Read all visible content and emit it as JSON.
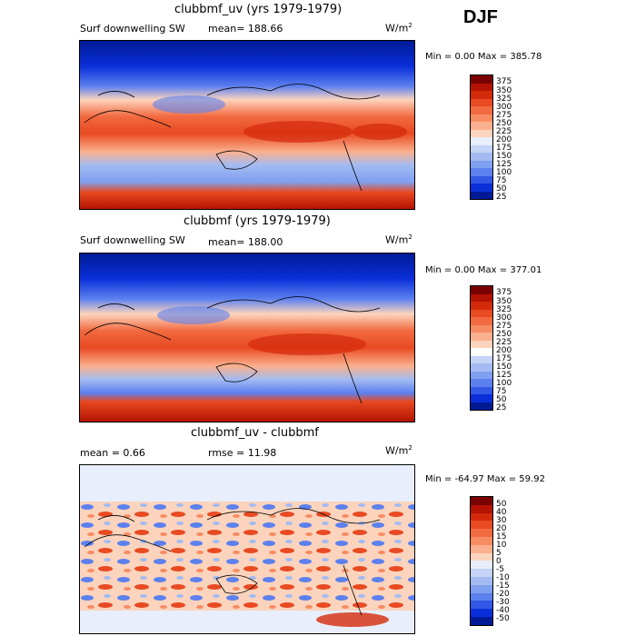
{
  "season": "DJF",
  "panels": [
    {
      "title": "clubbmf_uv (yrs 1979-1979)",
      "variable": "Surf downwelling SW",
      "stat": "mean= 188.66",
      "units": "W/m",
      "units_sup": "2",
      "range": "Min =    0.00 Max = 385.78",
      "colorbar_labels": [
        "375",
        "350",
        "325",
        "300",
        "275",
        "250",
        "225",
        "200",
        "175",
        "150",
        "125",
        "100",
        "75",
        "50",
        "25"
      ],
      "colorbar_colors": [
        "#7a0000",
        "#b31300",
        "#d42a0c",
        "#e84a22",
        "#f26a40",
        "#f78c63",
        "#fab08e",
        "#fcd4bd",
        "#e8eefb",
        "#c4d3f6",
        "#a3bbf2",
        "#7f9ff0",
        "#5c80ee",
        "#3358e6",
        "#0a2fd9",
        "#001a96"
      ]
    },
    {
      "title": "clubbmf (yrs 1979-1979)",
      "variable": "Surf downwelling SW",
      "stat": "mean= 188.00",
      "units": "W/m",
      "units_sup": "2",
      "range": "Min =    0.00 Max = 377.01",
      "colorbar_labels": [
        "375",
        "350",
        "325",
        "300",
        "275",
        "250",
        "225",
        "200",
        "175",
        "150",
        "125",
        "100",
        "75",
        "50",
        "25"
      ],
      "colorbar_colors": [
        "#7a0000",
        "#b31300",
        "#d42a0c",
        "#e84a22",
        "#f26a40",
        "#f78c63",
        "#fab08e",
        "#fcd4bd",
        "#ffffff",
        "#c4d3f6",
        "#a3bbf2",
        "#7f9ff0",
        "#5c80ee",
        "#3358e6",
        "#0a2fd9",
        "#001a96"
      ]
    },
    {
      "title": "clubbmf_uv - clubbmf",
      "stat_mean": "mean =    0.66",
      "stat_rmse": "rmse =   11.98",
      "units": "W/m",
      "units_sup": "2",
      "range": "Min = -64.97 Max =  59.92",
      "colorbar_labels": [
        "50",
        "40",
        "30",
        "20",
        "15",
        "10",
        "5",
        "0",
        "-5",
        "-10",
        "-15",
        "-20",
        "-30",
        "-40",
        "-50"
      ],
      "colorbar_colors": [
        "#7a0000",
        "#b31300",
        "#d42a0c",
        "#e84a22",
        "#f26a40",
        "#f78c63",
        "#fab08e",
        "#fcd4bd",
        "#e8eefb",
        "#c4d3f6",
        "#a3bbf2",
        "#7f9ff0",
        "#5c80ee",
        "#3358e6",
        "#0a2fd9",
        "#001a96"
      ]
    }
  ]
}
